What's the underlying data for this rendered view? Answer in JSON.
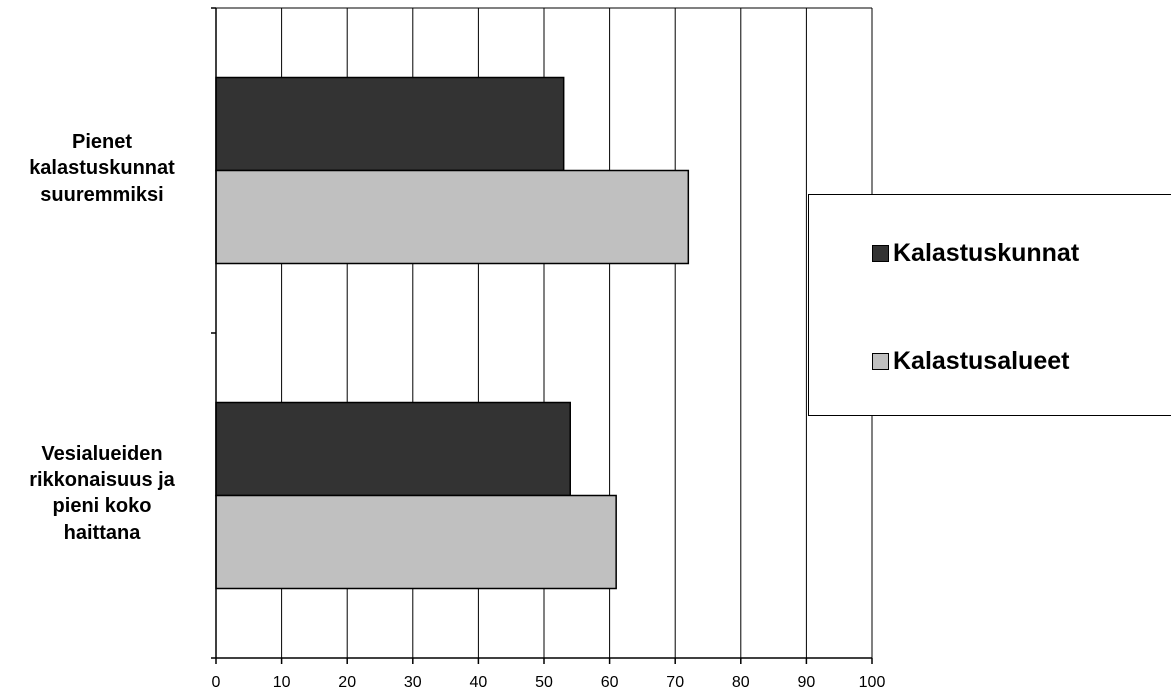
{
  "chart_data": {
    "type": "bar",
    "orientation": "horizontal",
    "categories": [
      "Pienet\nkalastuskunnat\nsuuremmiksi",
      "Vesialueiden\nrikkonaisuus ja\npieni koko\nhaittana"
    ],
    "series": [
      {
        "name": "Kalastuskunnat",
        "values": [
          53,
          54
        ],
        "color": "#333333"
      },
      {
        "name": "Kalastusalueet",
        "values": [
          72,
          61
        ],
        "color": "#c0c0c0"
      }
    ],
    "xlim": [
      0,
      100
    ],
    "xticks": [
      "0",
      "10",
      "20",
      "30",
      "40",
      "50",
      "60",
      "70",
      "80",
      "90",
      "100"
    ],
    "grid": "vertical",
    "legend": "right"
  }
}
